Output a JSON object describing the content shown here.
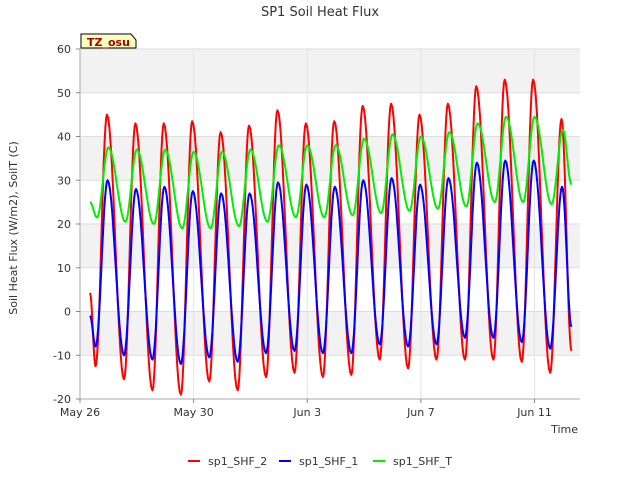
{
  "chart_data": {
    "type": "line",
    "title": "SP1 Soil Heat Flux",
    "xlabel": "Time",
    "ylabel": "Soil Heat Flux (W/m2), SoilT (C)",
    "badge": "TZ_osu",
    "xlim": [
      0,
      17.6
    ],
    "ylim": [
      -20,
      60
    ],
    "x_ticks": [
      {
        "label": "May 26",
        "x": 0
      },
      {
        "label": "May 30",
        "x": 4
      },
      {
        "label": "Jun 3",
        "x": 8
      },
      {
        "label": "Jun 7",
        "x": 12
      },
      {
        "label": "Jun 11",
        "x": 16
      }
    ],
    "y_ticks": [
      -20,
      -10,
      0,
      10,
      20,
      30,
      40,
      50,
      60
    ],
    "legend_position": "bottom",
    "grid": true,
    "x_start": 0.35,
    "x_end": 17.3,
    "series": [
      {
        "name": "sp1_SHF_2",
        "color": "#ff0000",
        "daily_peaks_x": [
          0.95,
          1.95,
          2.95,
          3.95,
          4.95,
          5.95,
          6.95,
          7.95,
          8.95,
          9.95,
          10.95,
          11.95,
          12.95,
          13.95,
          14.95,
          15.95,
          16.95
        ],
        "daily_peaks": [
          45,
          43,
          43,
          43.5,
          41,
          42.5,
          46,
          43,
          43.5,
          47,
          47.5,
          45,
          47.5,
          51.5,
          53,
          53,
          44
        ],
        "daily_troughs_x": [
          0.55,
          1.55,
          2.55,
          3.55,
          4.55,
          5.55,
          6.55,
          7.55,
          8.55,
          9.55,
          10.55,
          11.55,
          12.55,
          13.55,
          14.55,
          15.55,
          16.55
        ],
        "daily_troughs": [
          -12.5,
          -15.5,
          -18,
          -19,
          -16,
          -18,
          -15,
          -14,
          -15,
          -14.5,
          -11,
          -13,
          -11,
          -11,
          -11,
          -11.5,
          -14
        ],
        "end_value": -9
      },
      {
        "name": "sp1_SHF_1",
        "color": "#0000ff",
        "daily_peaks_x": [
          0.97,
          1.97,
          2.97,
          3.97,
          4.97,
          5.97,
          6.97,
          7.97,
          8.97,
          9.97,
          10.97,
          11.97,
          12.97,
          13.97,
          14.97,
          15.97,
          16.97
        ],
        "daily_peaks": [
          30,
          28,
          28.5,
          27.5,
          27,
          27,
          29.5,
          29,
          28.5,
          30,
          30.5,
          29,
          30.5,
          34,
          34.5,
          34.5,
          28.5
        ],
        "daily_troughs_x": [
          0.55,
          1.55,
          2.55,
          3.55,
          4.55,
          5.55,
          6.55,
          7.55,
          8.55,
          9.55,
          10.55,
          11.55,
          12.55,
          13.55,
          14.55,
          15.55,
          16.55
        ],
        "daily_troughs": [
          -8,
          -10,
          -11,
          -12,
          -10.5,
          -11.5,
          -9.5,
          -9,
          -9.5,
          -9.5,
          -7.5,
          -8,
          -7.5,
          -6,
          -6,
          -7,
          -8.5
        ],
        "end_value": -3.5
      },
      {
        "name": "sp1_SHF_T",
        "color": "#00ee00",
        "daily_peaks_x": [
          1.0,
          2.0,
          3.0,
          4.0,
          5.0,
          6.0,
          7.0,
          8.0,
          9.0,
          10.0,
          11.0,
          12.0,
          13.0,
          14.0,
          15.0,
          16.0,
          17.0
        ],
        "daily_peaks": [
          37.5,
          37,
          37,
          36.5,
          36.5,
          37,
          38,
          38,
          38,
          39.5,
          40.5,
          40,
          41,
          43,
          44.5,
          44.5,
          41.5
        ],
        "daily_troughs_x": [
          0.6,
          1.6,
          2.6,
          3.6,
          4.6,
          5.6,
          6.6,
          7.6,
          8.6,
          9.6,
          10.6,
          11.6,
          12.6,
          13.6,
          14.6,
          15.6,
          16.6
        ],
        "daily_troughs": [
          21.5,
          20.5,
          20,
          19,
          19,
          19.5,
          20.5,
          21.5,
          21.5,
          22,
          22.5,
          23,
          23.5,
          24,
          25,
          25,
          24.5
        ],
        "start_value": 25,
        "end_value": 29
      }
    ]
  }
}
